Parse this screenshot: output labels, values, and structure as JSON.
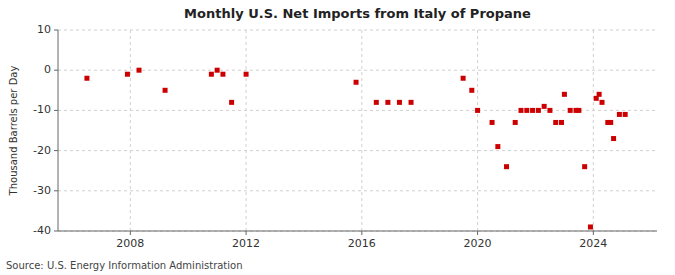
{
  "chart_data": {
    "type": "scatter",
    "title": "Monthly U.S. Net Imports from Italy of Propane",
    "ylabel": "Thousand Barrels per Day",
    "annotations": [
      "Source: U.S. Energy Information Administration"
    ],
    "color": "#cc0000",
    "marker": "square",
    "grid": true,
    "xlim": [
      2005.5,
      2026.2
    ],
    "xticks": [
      2008,
      2012,
      2016,
      2020,
      2024
    ],
    "ylim": [
      -40,
      10
    ],
    "yticks": [
      -40,
      -30,
      -20,
      -10,
      0,
      10
    ],
    "x": [
      2006.5,
      2007.9,
      2008.3,
      2009.2,
      2010.8,
      2011.0,
      2011.2,
      2011.5,
      2012.0,
      2015.8,
      2016.5,
      2016.9,
      2017.3,
      2017.7,
      2019.5,
      2019.8,
      2020.0,
      2020.5,
      2020.7,
      2021.0,
      2021.3,
      2021.5,
      2021.7,
      2021.9,
      2022.1,
      2022.3,
      2022.5,
      2022.7,
      2022.9,
      2023.0,
      2023.2,
      2023.4,
      2023.5,
      2023.7,
      2023.9,
      2024.1,
      2024.2,
      2024.3,
      2024.5,
      2024.6,
      2024.7,
      2024.9,
      2025.1
    ],
    "values": [
      -2,
      -1,
      0,
      -5,
      -1,
      0,
      -1,
      -8,
      -1,
      -3,
      -8,
      -8,
      -8,
      -8,
      -2,
      -5,
      -10,
      -13,
      -19,
      -24,
      -13,
      -10,
      -10,
      -10,
      -10,
      -9,
      -10,
      -13,
      -13,
      -6,
      -10,
      -10,
      -10,
      -24,
      -39,
      -7,
      -6,
      -8,
      -13,
      -13,
      -17,
      -11,
      -11
    ]
  }
}
